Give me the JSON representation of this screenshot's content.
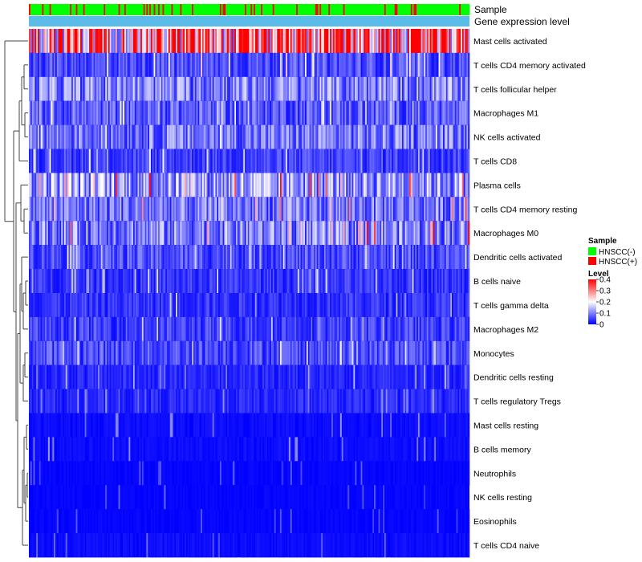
{
  "chart_data": {
    "type": "heatmap",
    "title": "",
    "annotation_tracks": [
      "Sample",
      "Gene expression level"
    ],
    "sample_groups": [
      "HNSCC(-)",
      "HNSCC(+)"
    ],
    "rows": [
      "Mast cells activated",
      "T cells CD4 memory activated",
      "T cells follicular helper",
      "Macrophages M1",
      "NK cells activated",
      "T cells CD8",
      "Plasma cells",
      "T cells CD4 memory resting",
      "Macrophages M0",
      "Dendritic cells activated",
      "B cells naive",
      "T cells gamma delta",
      "Macrophages M2",
      "Monocytes",
      "Dendritic cells resting",
      "T cells regulatory  Tregs",
      "Mast cells resting",
      "B cells memory",
      "Neutrophils",
      "NK cells resting",
      "Eosinophils",
      "T cells CD4 naive"
    ],
    "approx_row_mean_level": [
      0.3,
      0.06,
      0.1,
      0.07,
      0.09,
      0.05,
      0.12,
      0.09,
      0.1,
      0.06,
      0.04,
      0.04,
      0.05,
      0.06,
      0.03,
      0.03,
      0.01,
      0.01,
      0.005,
      0.005,
      0.005,
      0.01
    ],
    "approx_row_max_level": [
      0.4,
      0.25,
      0.18,
      0.2,
      0.2,
      0.2,
      0.4,
      0.35,
      0.4,
      0.2,
      0.18,
      0.18,
      0.18,
      0.2,
      0.15,
      0.12,
      0.12,
      0.12,
      0.08,
      0.08,
      0.08,
      0.1
    ],
    "n_columns_approx": 300,
    "hnscc_positive_fraction_approx": 0.15,
    "color_scale": {
      "min": 0,
      "max": 0.4,
      "ticks": [
        0.4,
        0.3,
        0.2,
        0.1,
        0
      ],
      "tick_labels": [
        "0.4",
        "0.3",
        "0.2",
        "0.1",
        "0"
      ],
      "colors": [
        "#0000ff",
        "#ffffff",
        "#ff0000"
      ]
    },
    "legend": {
      "sample_title": "Sample",
      "sample_items": [
        {
          "label": "HNSCC(-)",
          "color": "#00ff00"
        },
        {
          "label": "HNSCC(+)",
          "color": "#ff0000"
        }
      ],
      "level_title": "Level",
      "placement": "right"
    },
    "expression_track_color": "#5bbcea",
    "dendrogram": "row clustering, left side"
  }
}
